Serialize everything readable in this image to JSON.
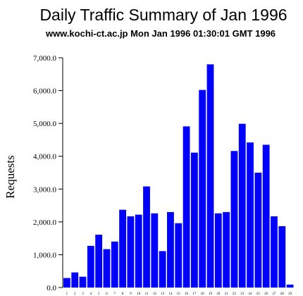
{
  "chart_data": {
    "type": "bar",
    "title": "Daily Traffic Summary of Jan 1996",
    "subtitle": "www.kochi-ct.ac.jp Mon Jan 1996 01:30:01 GMT 1996",
    "xlabel": "",
    "ylabel": "Requests",
    "ylim": [
      0,
      7000
    ],
    "yticks": [
      "0.0",
      "1,000.0",
      "2,000.0",
      "3,000.0",
      "4,000.0",
      "5,000.0",
      "6,000.0",
      "7,000.0"
    ],
    "ytick_values": [
      0,
      1000,
      2000,
      3000,
      4000,
      5000,
      6000,
      7000
    ],
    "bar_color": "#0000ff",
    "categories": [
      "1",
      "2",
      "3",
      "4",
      "5",
      "6",
      "7",
      "8",
      "9",
      "10",
      "11",
      "12",
      "13",
      "14",
      "15",
      "16",
      "17",
      "18",
      "19",
      "20",
      "21",
      "22",
      "23",
      "24",
      "25",
      "26",
      "27",
      "28",
      "29"
    ],
    "values": [
      290,
      460,
      330,
      1270,
      1610,
      1170,
      1400,
      2370,
      2170,
      2220,
      3080,
      2260,
      1110,
      2300,
      1960,
      4910,
      4110,
      6020,
      6800,
      2260,
      2300,
      4160,
      4990,
      4420,
      3500,
      4350,
      2170,
      1870,
      90
    ]
  }
}
